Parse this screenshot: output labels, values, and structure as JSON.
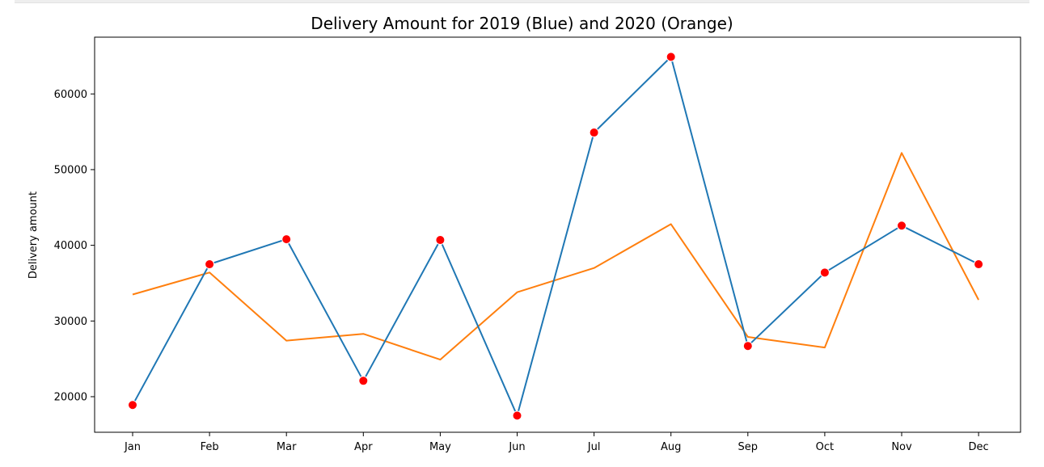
{
  "chart_data": {
    "type": "line",
    "title": "Delivery Amount for 2019 (Blue) and 2020 (Orange)",
    "xlabel": "",
    "ylabel": "Delivery amount",
    "categories": [
      "Jan",
      "Feb",
      "Mar",
      "Apr",
      "May",
      "Jun",
      "Jul",
      "Aug",
      "Sep",
      "Oct",
      "Nov",
      "Dec"
    ],
    "yticks": [
      20000,
      30000,
      40000,
      50000,
      60000
    ],
    "ylim": [
      15300,
      67500
    ],
    "grid": false,
    "series": [
      {
        "color": "#1f77b4",
        "marker": "red-dot",
        "values": [
          18900,
          37500,
          40800,
          22100,
          40700,
          17500,
          54900,
          64900,
          26700,
          36400,
          42600,
          37500
        ]
      },
      {
        "color": "#ff7f0e",
        "marker": "none",
        "values": [
          33500,
          36400,
          27400,
          28300,
          24900,
          33800,
          37000,
          42800,
          27900,
          26500,
          52200,
          32800
        ]
      }
    ]
  }
}
